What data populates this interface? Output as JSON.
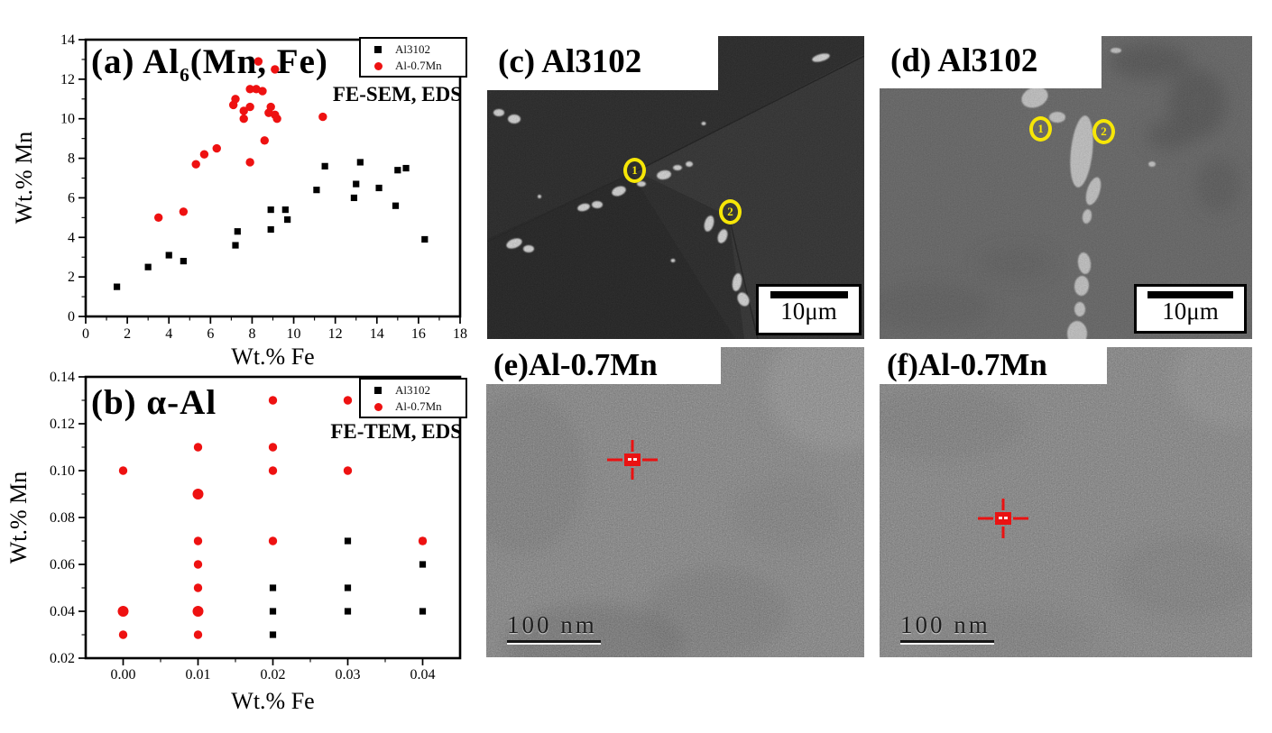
{
  "page": {
    "background": "#ffffff"
  },
  "colors": {
    "al3102_series": "#000000",
    "al07mn_series": "#ee1111",
    "spot_marker_yellow": "#f6e607",
    "eds_marker_red": "#ea1212"
  },
  "chart_data": [
    {
      "id": "a",
      "type": "scatter",
      "title_prefix": "(a) Al",
      "title_sub": "6",
      "title_suffix": "(Mn, Fe)",
      "method_note": "FE-SEM, EDS",
      "xlabel": "Wt.% Fe",
      "ylabel": "Wt.% Mn",
      "xlim": [
        0,
        18
      ],
      "ylim": [
        0,
        14
      ],
      "xticks": [
        0,
        2,
        4,
        6,
        8,
        10,
        12,
        14,
        16,
        18
      ],
      "xtick_labels": [
        "0",
        "2",
        "4",
        "6",
        "8",
        "10",
        "12",
        "14",
        "16",
        "18"
      ],
      "yticks": [
        0,
        2,
        4,
        6,
        8,
        10,
        12,
        14
      ],
      "ytick_labels": [
        "0",
        "2",
        "4",
        "6",
        "8",
        "10",
        "12",
        "14"
      ],
      "grid": false,
      "legend_position": "top-right",
      "series": [
        {
          "name": "Al3102",
          "marker": "square",
          "color": "#000000",
          "points": [
            [
              1.5,
              1.5
            ],
            [
              3.0,
              2.5
            ],
            [
              4.0,
              3.1
            ],
            [
              4.7,
              2.8
            ],
            [
              7.2,
              3.6
            ],
            [
              7.3,
              4.3
            ],
            [
              8.9,
              4.4
            ],
            [
              8.9,
              5.4
            ],
            [
              9.6,
              5.4
            ],
            [
              9.7,
              4.9
            ],
            [
              11.1,
              6.4
            ],
            [
              11.5,
              7.6
            ],
            [
              12.9,
              6.0
            ],
            [
              13.0,
              6.7
            ],
            [
              13.2,
              7.8
            ],
            [
              14.1,
              6.5
            ],
            [
              14.9,
              5.6
            ],
            [
              15.0,
              7.4
            ],
            [
              15.4,
              7.5
            ],
            [
              16.3,
              3.9
            ]
          ]
        },
        {
          "name": "Al-0.7Mn",
          "marker": "circle",
          "color": "#ee1111",
          "points": [
            [
              3.5,
              5.0
            ],
            [
              4.7,
              5.3
            ],
            [
              5.3,
              7.7
            ],
            [
              5.7,
              8.2
            ],
            [
              6.3,
              8.5
            ],
            [
              7.1,
              10.7
            ],
            [
              7.2,
              11.0
            ],
            [
              7.6,
              10.4
            ],
            [
              7.6,
              10.0
            ],
            [
              7.9,
              11.5
            ],
            [
              8.2,
              11.5
            ],
            [
              7.9,
              10.6
            ],
            [
              8.5,
              11.4
            ],
            [
              8.3,
              12.9
            ],
            [
              9.1,
              12.5
            ],
            [
              8.9,
              10.6
            ],
            [
              8.8,
              10.3
            ],
            [
              9.1,
              10.2
            ],
            [
              9.2,
              10.0
            ],
            [
              8.6,
              8.9
            ],
            [
              7.9,
              7.8
            ],
            [
              11.4,
              10.1
            ]
          ]
        }
      ]
    },
    {
      "id": "b",
      "type": "scatter",
      "title_prefix": "(b) α-Al",
      "title_sub": "",
      "title_suffix": "",
      "method_note": "FE-TEM, EDS",
      "xlabel": "Wt.% Fe",
      "ylabel": "Wt.% Mn",
      "xlim": [
        -0.005,
        0.045
      ],
      "ylim": [
        0.02,
        0.14
      ],
      "xticks": [
        0.0,
        0.01,
        0.02,
        0.03,
        0.04
      ],
      "xtick_labels": [
        "0.00",
        "0.01",
        "0.02",
        "0.03",
        "0.04"
      ],
      "yticks": [
        0.02,
        0.04,
        0.06,
        0.08,
        0.1,
        0.12,
        0.14
      ],
      "ytick_labels": [
        "0.02",
        "0.04",
        "0.06",
        "0.08",
        "0.10",
        "0.12",
        "0.14"
      ],
      "grid": false,
      "legend_position": "top-right",
      "series": [
        {
          "name": "Al3102",
          "marker": "square",
          "color": "#000000",
          "points": [
            [
              0.02,
              0.05
            ],
            [
              0.02,
              0.04
            ],
            [
              0.02,
              0.03
            ],
            [
              0.03,
              0.07
            ],
            [
              0.03,
              0.05
            ],
            [
              0.03,
              0.04
            ],
            [
              0.04,
              0.07
            ],
            [
              0.04,
              0.06
            ],
            [
              0.04,
              0.04
            ]
          ]
        },
        {
          "name": "Al-0.7Mn",
          "marker": "circle",
          "color": "#ee1111",
          "points": [
            [
              0.0,
              0.1
            ],
            [
              0.0,
              0.04,
              6
            ],
            [
              0.0,
              0.03
            ],
            [
              0.01,
              0.11
            ],
            [
              0.01,
              0.09,
              6
            ],
            [
              0.01,
              0.07
            ],
            [
              0.01,
              0.06
            ],
            [
              0.01,
              0.05
            ],
            [
              0.01,
              0.04,
              6
            ],
            [
              0.01,
              0.03
            ],
            [
              0.02,
              0.13
            ],
            [
              0.02,
              0.11
            ],
            [
              0.02,
              0.1
            ],
            [
              0.02,
              0.07
            ],
            [
              0.03,
              0.13
            ],
            [
              0.03,
              0.1
            ],
            [
              0.04,
              0.07
            ]
          ]
        }
      ]
    }
  ],
  "micrographs": {
    "c": {
      "label": "(c) Al3102",
      "scale_text": "10μm",
      "spot_labels": [
        "1",
        "2"
      ]
    },
    "d": {
      "label": "(d) Al3102",
      "scale_text": "10μm",
      "spot_labels": [
        "1",
        "2"
      ]
    },
    "e": {
      "label": "(e)Al-0.7Mn",
      "scale_text": "100 nm"
    },
    "f": {
      "label": "(f)Al-0.7Mn",
      "scale_text": "100 nm"
    }
  }
}
